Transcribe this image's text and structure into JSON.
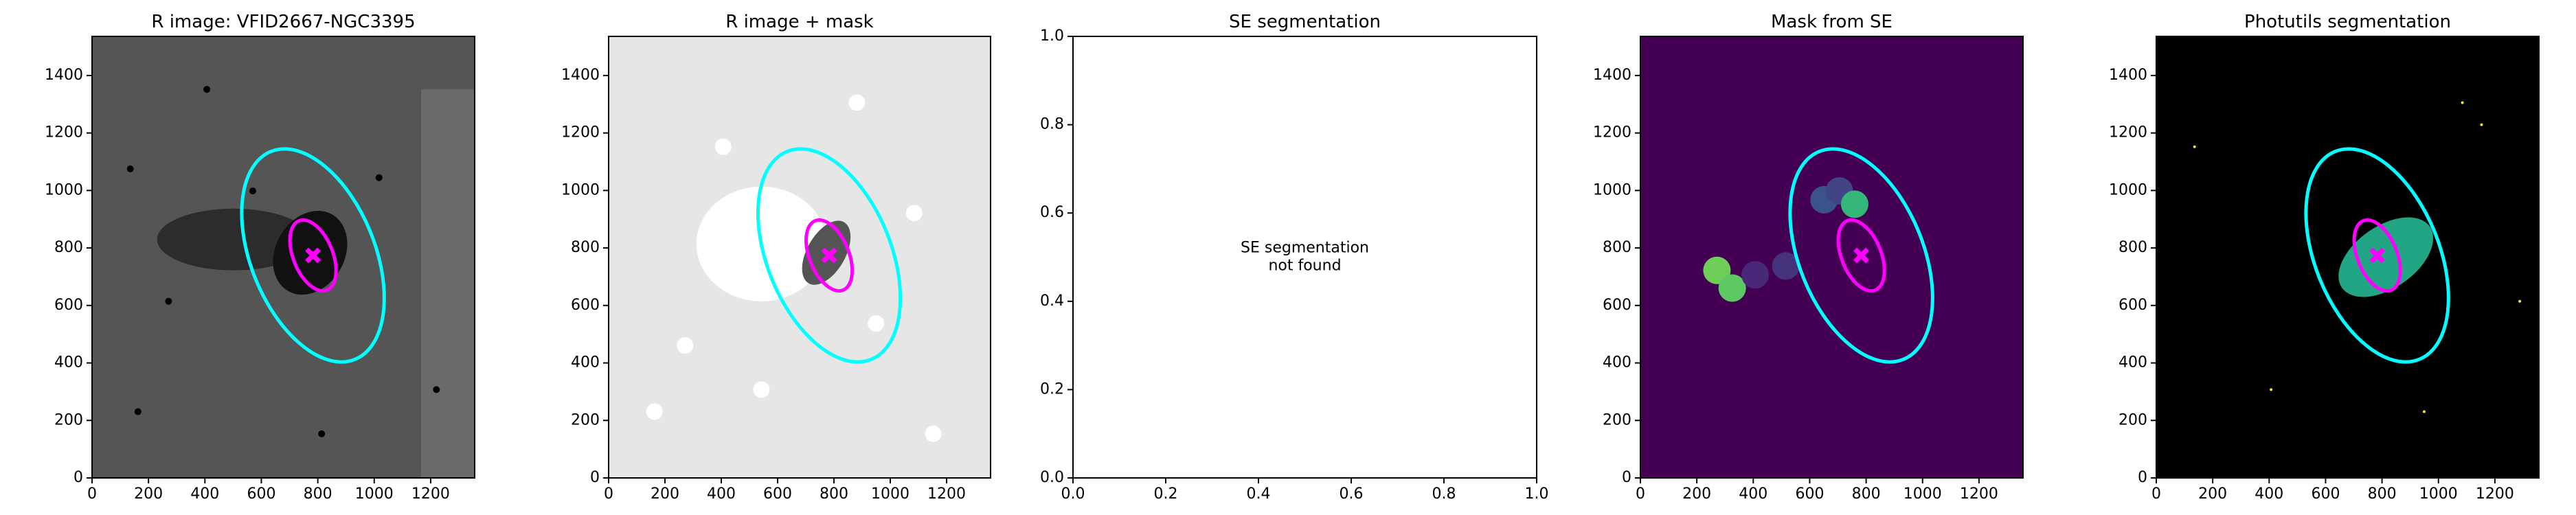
{
  "chart_data": [
    {
      "type": "image",
      "title": "R image: VFID2667-NGC3395",
      "background": "#555555",
      "xlim": [
        0,
        1356
      ],
      "ylim": [
        0,
        1536
      ],
      "xticks": [
        0,
        200,
        400,
        600,
        800,
        1000,
        1200
      ],
      "yticks": [
        0,
        200,
        400,
        600,
        800,
        1000,
        1200,
        1400
      ],
      "ellipses": [
        {
          "cx": 783,
          "cy": 774,
          "a": 390,
          "b": 220,
          "angle": 22,
          "color": "#00ffff"
        },
        {
          "cx": 783,
          "cy": 774,
          "a": 130,
          "b": 70,
          "angle": 22,
          "color": "#ff00ff"
        }
      ],
      "marker": [
        783,
        774
      ]
    },
    {
      "type": "image",
      "title": "R image + mask",
      "background": "#e6e6e6",
      "xlim": [
        0,
        1356
      ],
      "ylim": [
        0,
        1536
      ],
      "xticks": [
        0,
        200,
        400,
        600,
        800,
        1000,
        1200
      ],
      "yticks": [
        0,
        200,
        400,
        600,
        800,
        1000,
        1200,
        1400
      ],
      "ellipses": [
        {
          "cx": 783,
          "cy": 774,
          "a": 390,
          "b": 220,
          "angle": 22,
          "color": "#00ffff"
        },
        {
          "cx": 783,
          "cy": 774,
          "a": 130,
          "b": 70,
          "angle": 22,
          "color": "#ff00ff"
        }
      ],
      "marker": [
        783,
        774
      ]
    },
    {
      "type": "empty",
      "title": "SE segmentation",
      "background": "#ffffff",
      "xlim": [
        0,
        1
      ],
      "ylim": [
        0,
        1
      ],
      "xticks": [
        {
          "value": 0,
          "label": "0.0"
        },
        0.2,
        0.4,
        0.6,
        0.8,
        {
          "value": 1,
          "label": "1.0"
        }
      ],
      "yticks": [
        {
          "value": 0,
          "label": "0.0"
        },
        0.2,
        0.4,
        0.6,
        0.8,
        {
          "value": 1,
          "label": "1.0"
        }
      ],
      "annotation": [
        "SE segmentation",
        "not found"
      ]
    },
    {
      "type": "image",
      "title": "Mask from SE",
      "background": "#440154",
      "xlim": [
        0,
        1356
      ],
      "ylim": [
        0,
        1536
      ],
      "xticks": [
        0,
        200,
        400,
        600,
        800,
        1000,
        1200
      ],
      "yticks": [
        0,
        200,
        400,
        600,
        800,
        1000,
        1200,
        1400
      ],
      "ellipses": [
        {
          "cx": 783,
          "cy": 774,
          "a": 390,
          "b": 220,
          "angle": 22,
          "color": "#00ffff"
        },
        {
          "cx": 783,
          "cy": 774,
          "a": 130,
          "b": 70,
          "angle": 22,
          "color": "#ff00ff"
        }
      ],
      "marker": [
        783,
        774
      ]
    },
    {
      "type": "image",
      "title": "Photutils segmentation",
      "background": "#000000",
      "xlim": [
        0,
        1356
      ],
      "ylim": [
        0,
        1536
      ],
      "xticks": [
        0,
        200,
        400,
        600,
        800,
        1000,
        1200
      ],
      "yticks": [
        0,
        200,
        400,
        600,
        800,
        1000,
        1200,
        1400
      ],
      "ellipses": [
        {
          "cx": 783,
          "cy": 774,
          "a": 390,
          "b": 220,
          "angle": 22,
          "color": "#00ffff"
        },
        {
          "cx": 783,
          "cy": 774,
          "a": 130,
          "b": 70,
          "angle": 22,
          "color": "#ff00ff"
        }
      ],
      "marker": [
        783,
        774
      ]
    }
  ]
}
